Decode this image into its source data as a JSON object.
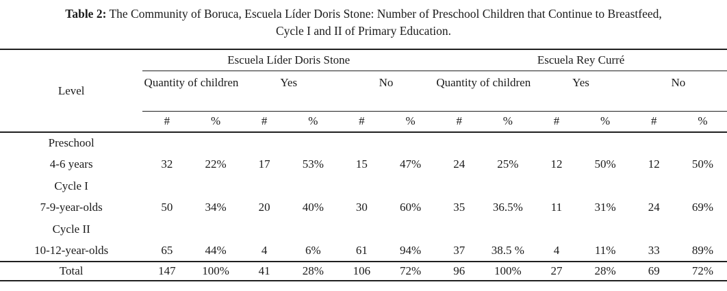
{
  "caption": {
    "label": "Table 2:",
    "line1_rest": "The Community of Boruca, Escuela Líder Doris Stone: Number of Preschool Children that Continue to Breastfeed,",
    "line2": "Cycle I and II of Primary Education."
  },
  "table": {
    "level_header": "Level",
    "count_symbol": "#",
    "percent_symbol": "%",
    "school_groups": [
      {
        "name": "Escuela Líder Doris Stone",
        "subgroups": [
          "Quantity of children",
          "Yes",
          "No"
        ]
      },
      {
        "name": "Escuela Rey Curré",
        "subgroups": [
          "Quantity of children",
          "Yes",
          "No"
        ]
      }
    ],
    "rows": [
      {
        "level": "Preschool",
        "values": [
          "",
          "",
          "",
          "",
          "",
          "",
          "",
          "",
          "",
          "",
          "",
          ""
        ]
      },
      {
        "level": "4-6 years",
        "values": [
          "32",
          "22%",
          "17",
          "53%",
          "15",
          "47%",
          "24",
          "25%",
          "12",
          "50%",
          "12",
          "50%"
        ]
      },
      {
        "level": "Cycle I",
        "values": [
          "",
          "",
          "",
          "",
          "",
          "",
          "",
          "",
          "",
          "",
          "",
          ""
        ]
      },
      {
        "level": "7-9-year-olds",
        "values": [
          "50",
          "34%",
          "20",
          "40%",
          "30",
          "60%",
          "35",
          "36.5%",
          "11",
          "31%",
          "24",
          "69%"
        ]
      },
      {
        "level": "Cycle II",
        "values": [
          "",
          "",
          "",
          "",
          "",
          "",
          "",
          "",
          "",
          "",
          "",
          ""
        ]
      },
      {
        "level": "10-12-year-olds",
        "values": [
          "65",
          "44%",
          "4",
          "6%",
          "61",
          "94%",
          "37",
          "38.5 %",
          "4",
          "11%",
          "33",
          "89%"
        ]
      }
    ],
    "total_row": {
      "level": "Total",
      "values": [
        "147",
        "100%",
        "41",
        "28%",
        "106",
        "72%",
        "96",
        "100%",
        "27",
        "28%",
        "69",
        "72%"
      ]
    }
  }
}
